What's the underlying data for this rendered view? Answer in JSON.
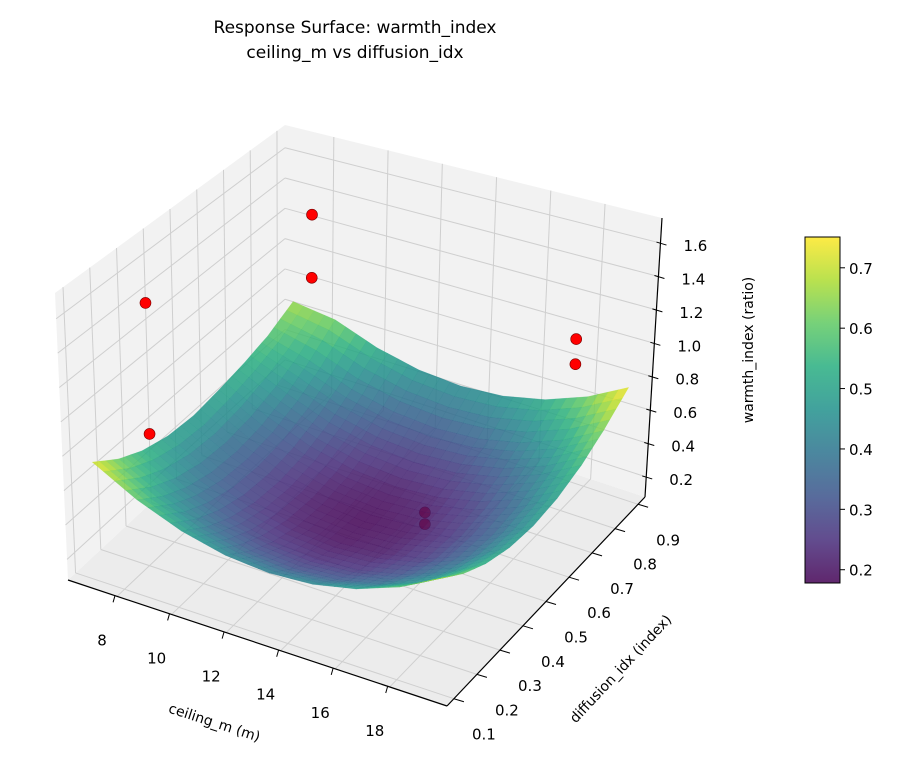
{
  "chart_data": {
    "type": "surface",
    "title": [
      "Response Surface: warmth_index",
      "ceiling_m vs diffusion_idx"
    ],
    "xlabel": "ceiling_m (m)",
    "ylabel": "diffusion_idx (index)",
    "zlabel": "warmth_index (ratio)",
    "xlim": [
      6.2,
      20.1
    ],
    "ylim": [
      0.07,
      0.93
    ],
    "zlim": [
      0.08,
      1.75
    ],
    "x_ticks": [
      "8",
      "10",
      "12",
      "14",
      "16",
      "18"
    ],
    "y_ticks": [
      "0.1",
      "0.2",
      "0.3",
      "0.4",
      "0.5",
      "0.6",
      "0.7",
      "0.8",
      "0.9"
    ],
    "z_ticks": [
      "0.2",
      "0.4",
      "0.6",
      "0.8",
      "1.0",
      "1.2",
      "1.4",
      "1.6"
    ],
    "grid": true,
    "colormap": "viridis",
    "surface_alpha": 0.85,
    "surface": {
      "x": [
        6.8,
        8.4,
        10.0,
        11.6,
        13.2,
        14.8,
        16.4,
        18.0,
        19.5
      ],
      "y": [
        0.12,
        0.22,
        0.31,
        0.41,
        0.51,
        0.61,
        0.71,
        0.8,
        0.9
      ],
      "z": [
        [
          0.734,
          0.622,
          0.551,
          0.504,
          0.49,
          0.51,
          0.54,
          0.58,
          0.66
        ],
        [
          0.598,
          0.486,
          0.415,
          0.368,
          0.354,
          0.374,
          0.428,
          0.506,
          0.624
        ],
        [
          0.501,
          0.389,
          0.318,
          0.271,
          0.257,
          0.277,
          0.331,
          0.409,
          0.527
        ],
        [
          0.443,
          0.331,
          0.26,
          0.213,
          0.199,
          0.219,
          0.273,
          0.351,
          0.469
        ],
        [
          0.424,
          0.312,
          0.241,
          0.194,
          0.18,
          0.2,
          0.254,
          0.332,
          0.45
        ],
        [
          0.443,
          0.331,
          0.26,
          0.213,
          0.199,
          0.219,
          0.273,
          0.351,
          0.469
        ],
        [
          0.501,
          0.389,
          0.318,
          0.271,
          0.257,
          0.277,
          0.331,
          0.409,
          0.527
        ],
        [
          0.598,
          0.486,
          0.415,
          0.368,
          0.354,
          0.374,
          0.428,
          0.506,
          0.624
        ],
        [
          0.729,
          0.617,
          0.546,
          0.499,
          0.485,
          0.505,
          0.559,
          0.637,
          0.751
        ]
      ]
    },
    "points": [
      {
        "x": 7.6,
        "y": 0.89,
        "z": 1.28,
        "behind_surface": false
      },
      {
        "x": 7.6,
        "y": 0.89,
        "z": 0.87,
        "behind_surface": false
      },
      {
        "x": 6.9,
        "y": 0.33,
        "z": 1.42,
        "behind_surface": false
      },
      {
        "x": 6.9,
        "y": 0.33,
        "z": 0.63,
        "behind_surface": false
      },
      {
        "x": 19.5,
        "y": 0.67,
        "z": 1.37,
        "behind_surface": false
      },
      {
        "x": 19.5,
        "y": 0.67,
        "z": 1.22,
        "behind_surface": false
      },
      {
        "x": 15.9,
        "y": 0.46,
        "z": 0.45,
        "behind_surface": true
      },
      {
        "x": 15.9,
        "y": 0.46,
        "z": 0.38,
        "behind_surface": true
      }
    ],
    "point_color": "#ff0000",
    "colorbar": {
      "clim": [
        0.178,
        0.751
      ],
      "ticks": [
        "0.2",
        "0.3",
        "0.4",
        "0.5",
        "0.6",
        "0.7"
      ]
    }
  }
}
